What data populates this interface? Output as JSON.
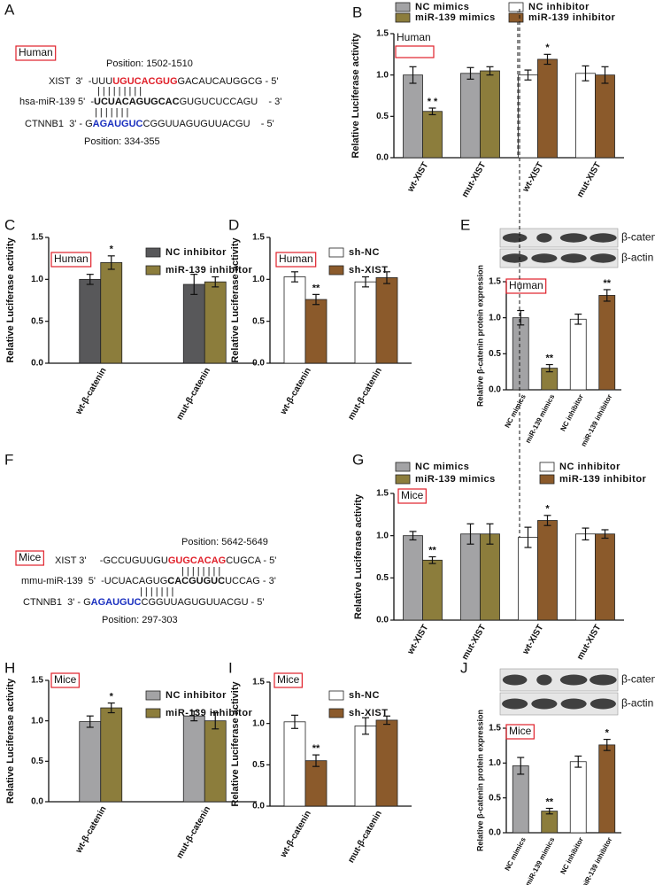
{
  "sequences": [
    {
      "panel": "A",
      "tag": "Human",
      "position_top": "Position: 1502-1510",
      "position_bottom": "Position: 334-355",
      "lines": [
        [
          {
            "text": "XIST  3'  -UUU"
          },
          {
            "text": "UGUCACGUG",
            "color": "#e0202a",
            "bold": true
          },
          {
            "text": "GACAUCAUGGCG - 5'"
          }
        ],
        [
          {
            "text": "| | | | | | | | |"
          }
        ],
        [
          {
            "text": "hsa-miR-139 5'  -"
          },
          {
            "text": "UCUACAGUGCAC",
            "bold": true
          },
          {
            "text": "GUGUCUCCAGU    - 3'"
          }
        ],
        [
          {
            "text": "| | | | | | |"
          }
        ],
        [
          {
            "text": "CTNNB1  3' - G"
          },
          {
            "text": "AGAUGUC",
            "color": "#1a2fbf",
            "bold": true
          },
          {
            "text": "CGGUUAGUGUUACGU    - 5'"
          }
        ]
      ]
    },
    {
      "panel": "F",
      "tag": "Mice",
      "position_top": "Position: 5642-5649",
      "position_bottom": "Position: 297-303",
      "lines": [
        [
          {
            "text": "XIST 3'     -GCCUGUUGU"
          },
          {
            "text": "GUGCACAG",
            "color": "#e0202a",
            "bold": true
          },
          {
            "text": "CUGCA - 5'"
          }
        ],
        [
          {
            "text": "| | | | | | | |"
          }
        ],
        [
          {
            "text": "mmu-miR-139  5'  -UCUACAGUG"
          },
          {
            "text": "CACGUGUC",
            "bold": true
          },
          {
            "text": "UCCAG - 3'"
          }
        ],
        [
          {
            "text": "| | | | | | |"
          }
        ],
        [
          {
            "text": "CTNNB1  3' - G"
          },
          {
            "text": "AGAUGUC",
            "color": "#1a2fbf",
            "bold": true
          },
          {
            "text": "CGGUUAGUGUUACGU - 5'"
          }
        ]
      ]
    }
  ],
  "chart_data": [
    {
      "type": "bar",
      "panel": "B",
      "tag": "Human",
      "ylabel": "Relative Luciferase activity",
      "categories": [
        "wt-XIST",
        "mut-XIST",
        "wt-XIST",
        "mut-XIST"
      ],
      "series": [
        {
          "name": "NC mimics",
          "color": "#a3a3a5",
          "values": [
            1.0,
            1.02,
            null,
            null
          ],
          "errors": [
            0.1,
            0.07,
            null,
            null
          ]
        },
        {
          "name": "miR-139 mimics",
          "color": "#8c7d3c",
          "values": [
            0.56,
            1.05,
            null,
            null
          ],
          "errors": [
            0.04,
            0.05,
            null,
            null
          ]
        },
        {
          "name": "NC inhibitor",
          "color": "#ffffff",
          "values": [
            null,
            null,
            1.0,
            1.02
          ],
          "errors": [
            null,
            null,
            0.06,
            0.09
          ]
        },
        {
          "name": "miR-139 inhibitor",
          "color": "#8b5a2b",
          "values": [
            null,
            null,
            1.19,
            1.0
          ],
          "errors": [
            null,
            null,
            0.06,
            0.1
          ]
        }
      ],
      "ylim": [
        0,
        1.5
      ],
      "yticks": [
        {
          "value": 0,
          "label": "0.0"
        },
        {
          "value": 0.5,
          "label": "0.5"
        },
        {
          "value": 1,
          "label": "1.0"
        },
        {
          "value": 1.5,
          "label": "1.5"
        }
      ],
      "annotations": [
        {
          "text": "* *",
          "series": 1,
          "category": 0
        },
        {
          "text": "*",
          "series": 3,
          "category": 2
        }
      ]
    },
    {
      "type": "bar",
      "panel": "C",
      "tag": "Human",
      "ylabel": "Relative Luciferase activity",
      "categories": [
        "wt-β-catenin",
        "mut-β-catenin"
      ],
      "series": [
        {
          "name": "NC inhibitor",
          "color": "#58585a",
          "values": [
            1.0,
            0.94
          ],
          "errors": [
            0.06,
            0.12
          ]
        },
        {
          "name": "miR-139 inhibitor",
          "color": "#8c7d3c",
          "values": [
            1.2,
            0.97
          ],
          "errors": [
            0.08,
            0.06
          ]
        }
      ],
      "ylim": [
        0,
        1.5
      ],
      "yticks": [
        {
          "value": 0,
          "label": "0.0"
        },
        {
          "value": 0.5,
          "label": "0.5"
        },
        {
          "value": 1,
          "label": "1.0"
        },
        {
          "value": 1.5,
          "label": "1.5"
        }
      ],
      "annotations": [
        {
          "text": "*",
          "series": 1,
          "category": 0
        }
      ]
    },
    {
      "type": "bar",
      "panel": "D",
      "tag": "Human",
      "ylabel": "Relative Luciferase activity",
      "categories": [
        "wt-β-catenin",
        "mut-β-catenin"
      ],
      "series": [
        {
          "name": "sh-NC",
          "color": "#ffffff",
          "values": [
            1.03,
            0.97
          ],
          "errors": [
            0.06,
            0.06
          ]
        },
        {
          "name": "sh-XIST",
          "color": "#8b5a2b",
          "values": [
            0.76,
            1.02
          ],
          "errors": [
            0.06,
            0.07
          ]
        }
      ],
      "ylim": [
        0,
        1.5
      ],
      "yticks": [
        {
          "value": 0,
          "label": "0.0"
        },
        {
          "value": 0.5,
          "label": "0.5"
        },
        {
          "value": 1,
          "label": "1.0"
        },
        {
          "value": 1.5,
          "label": "1.5"
        }
      ],
      "annotations": [
        {
          "text": "**",
          "series": 1,
          "category": 0
        }
      ]
    },
    {
      "type": "bar",
      "panel": "E",
      "tag": "Human",
      "ylabel": "Relative β-catenin protein expression",
      "blot": [
        "β-catenin",
        "β-actin"
      ],
      "categories": [
        "NC mimics",
        "miR-139 mimics",
        "NC inhibitor",
        "miR-139 inhibitor"
      ],
      "series": [
        {
          "colors": [
            "#a3a3a5",
            "#8c7d3c",
            "#ffffff",
            "#8b5a2b"
          ],
          "values": [
            1.0,
            0.3,
            0.98,
            1.31
          ],
          "errors": [
            0.1,
            0.05,
            0.07,
            0.08
          ]
        }
      ],
      "ylim": [
        0,
        1.5
      ],
      "yticks": [
        {
          "value": 0,
          "label": "0.0"
        },
        {
          "value": 0.5,
          "label": "0.5"
        },
        {
          "value": 1,
          "label": "1.0"
        },
        {
          "value": 1.5,
          "label": "1.5"
        }
      ],
      "annotations": [
        {
          "text": "**",
          "series": 0,
          "category": 1
        },
        {
          "text": "**",
          "series": 0,
          "category": 3
        }
      ]
    },
    {
      "type": "bar",
      "panel": "G",
      "tag": "Mice",
      "ylabel": "Relative Luciferase activity",
      "categories": [
        "wt-XIST",
        "mut-XIST",
        "wt-XIST",
        "mut-XIST"
      ],
      "series": [
        {
          "name": "NC mimics",
          "color": "#a3a3a5",
          "values": [
            1.0,
            1.02,
            null,
            null
          ],
          "errors": [
            0.05,
            0.12,
            null,
            null
          ]
        },
        {
          "name": "miR-139 mimics",
          "color": "#8c7d3c",
          "values": [
            0.71,
            1.02,
            null,
            null
          ],
          "errors": [
            0.04,
            0.12,
            null,
            null
          ]
        },
        {
          "name": "NC inhibitor",
          "color": "#ffffff",
          "values": [
            null,
            null,
            0.98,
            1.02
          ],
          "errors": [
            null,
            null,
            0.12,
            0.07
          ]
        },
        {
          "name": "miR-139 inhibitor",
          "color": "#8b5a2b",
          "values": [
            null,
            null,
            1.18,
            1.02
          ],
          "errors": [
            null,
            null,
            0.06,
            0.05
          ]
        }
      ],
      "ylim": [
        0,
        1.5
      ],
      "yticks": [
        {
          "value": 0,
          "label": "0.0"
        },
        {
          "value": 0.5,
          "label": "0.5"
        },
        {
          "value": 1,
          "label": "1.0"
        },
        {
          "value": 1.5,
          "label": "1.5"
        }
      ],
      "annotations": [
        {
          "text": "**",
          "series": 1,
          "category": 0
        },
        {
          "text": "*",
          "series": 3,
          "category": 2
        }
      ]
    },
    {
      "type": "bar",
      "panel": "H",
      "tag": "Mice",
      "ylabel": "Relative Luciferase activity",
      "categories": [
        "wt-β-catenin",
        "mut-β-catenin"
      ],
      "series": [
        {
          "name": "NC inhibitor",
          "color": "#a3a3a5",
          "values": [
            0.99,
            1.06
          ],
          "errors": [
            0.07,
            0.06
          ]
        },
        {
          "name": "miR-139 inhibitor",
          "color": "#8c7d3c",
          "values": [
            1.16,
            1.0
          ],
          "errors": [
            0.06,
            0.1
          ]
        }
      ],
      "ylim": [
        0,
        1.5
      ],
      "yticks": [
        {
          "value": 0,
          "label": "0.0"
        },
        {
          "value": 0.5,
          "label": "0.5"
        },
        {
          "value": 1,
          "label": "1.0"
        },
        {
          "value": 1.5,
          "label": "1.5"
        }
      ],
      "annotations": [
        {
          "text": "*",
          "series": 1,
          "category": 0
        }
      ]
    },
    {
      "type": "bar",
      "panel": "I",
      "tag": "Mice",
      "ylabel": "Relative Luciferase activity",
      "categories": [
        "wt-β-catenin",
        "mut-β-catenin"
      ],
      "series": [
        {
          "name": "sh-NC",
          "color": "#ffffff",
          "values": [
            1.02,
            0.97
          ],
          "errors": [
            0.08,
            0.1
          ]
        },
        {
          "name": "sh-XIST",
          "color": "#8b5a2b",
          "values": [
            0.55,
            1.04
          ],
          "errors": [
            0.07,
            0.05
          ]
        }
      ],
      "ylim": [
        0,
        1.5
      ],
      "yticks": [
        {
          "value": 0,
          "label": "0.0"
        },
        {
          "value": 0.5,
          "label": "0.5"
        },
        {
          "value": 1,
          "label": "1.0"
        },
        {
          "value": 1.5,
          "label": "1.5"
        }
      ],
      "annotations": [
        {
          "text": "**",
          "series": 1,
          "category": 0
        }
      ]
    },
    {
      "type": "bar",
      "panel": "J",
      "tag": "Mice",
      "ylabel": "Relative β-catenin protein expression",
      "blot": [
        "β-catenin",
        "β-actin"
      ],
      "categories": [
        "NC mimics",
        "miR-139 mimics",
        "NC inhibitor",
        "miR-139 inhibitor"
      ],
      "series": [
        {
          "colors": [
            "#a3a3a5",
            "#8c7d3c",
            "#ffffff",
            "#8b5a2b"
          ],
          "values": [
            0.96,
            0.31,
            1.02,
            1.26
          ],
          "errors": [
            0.12,
            0.04,
            0.08,
            0.08
          ]
        }
      ],
      "ylim": [
        0,
        1.5
      ],
      "yticks": [
        {
          "value": 0,
          "label": "0.0"
        },
        {
          "value": 0.5,
          "label": "0.5"
        },
        {
          "value": 1,
          "label": "1.0"
        },
        {
          "value": 1.5,
          "label": "1.5"
        }
      ],
      "annotations": [
        {
          "text": "**",
          "series": 0,
          "category": 1
        },
        {
          "text": "*",
          "series": 0,
          "category": 3
        }
      ]
    }
  ]
}
